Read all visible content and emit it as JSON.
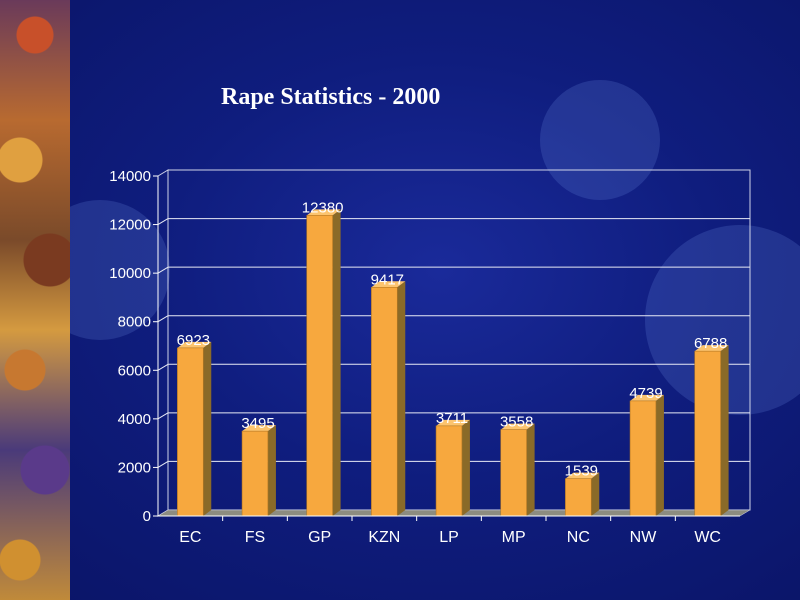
{
  "chart_data": {
    "type": "bar",
    "title": "Rape Statistics - 2000",
    "categories": [
      "EC",
      "FS",
      "GP",
      "KZN",
      "LP",
      "MP",
      "NC",
      "NW",
      "WC"
    ],
    "values": [
      6923,
      3495,
      12380,
      9417,
      3711,
      3558,
      1539,
      4739,
      6788
    ],
    "ylim": [
      0,
      14000
    ],
    "yticks": [
      0,
      2000,
      4000,
      6000,
      8000,
      10000,
      12000,
      14000
    ],
    "grid": true,
    "bar_color": "#f7a83e",
    "bar_side_color": "#8a6a28",
    "floor_color": "#8c8c80",
    "label_color": "#ffffff"
  }
}
